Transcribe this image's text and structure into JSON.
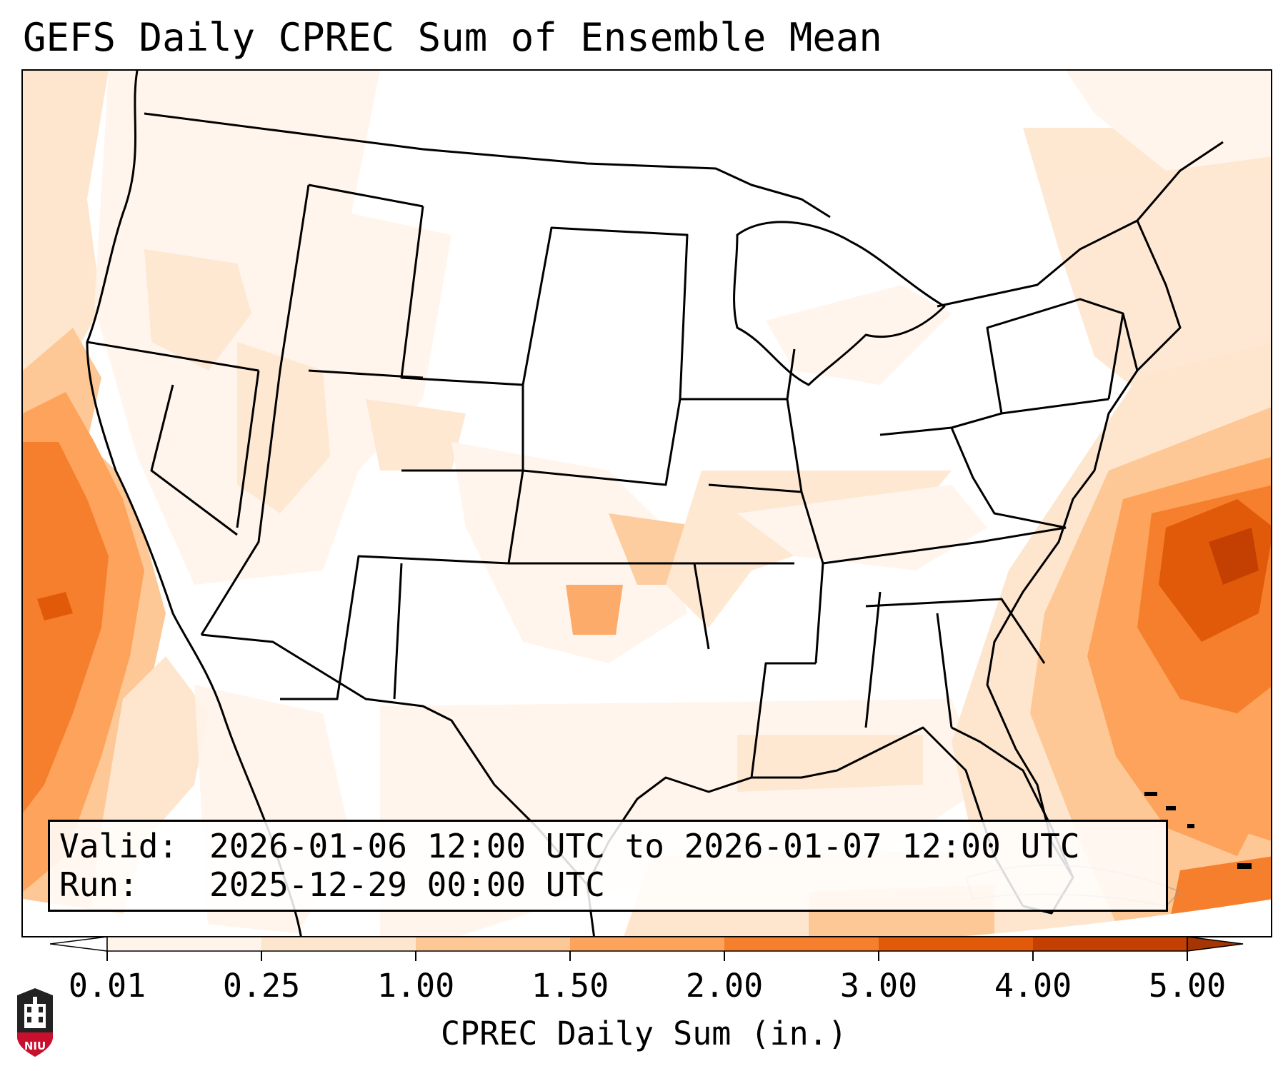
{
  "title": "GEFS Daily CPREC Sum of Ensemble Mean",
  "info": {
    "valid_label": "Valid:",
    "valid_value": "2026-01-06 12:00 UTC to 2026-01-07 12:00 UTC",
    "run_label": "Run:",
    "run_value": "2025-12-29 00:00 UTC"
  },
  "colorbar": {
    "label": "CPREC Daily Sum (in.)",
    "ticks": [
      "0.01",
      "0.25",
      "1.00",
      "1.50",
      "2.00",
      "3.00",
      "4.00",
      "5.00"
    ],
    "colors": [
      "#fff4ea",
      "#fee6ce",
      "#fdc895",
      "#fda35b",
      "#f57f2c",
      "#e05a0a",
      "#c44002"
    ],
    "under_color": "#ffffff",
    "over_color": "#a53603",
    "extend": "both"
  },
  "map": {
    "domain": "North America (CONUS)",
    "boundaries": "state and country lines",
    "coastline_color": "#000000"
  },
  "logo": {
    "text": "NIU",
    "name": "niu-logo"
  }
}
